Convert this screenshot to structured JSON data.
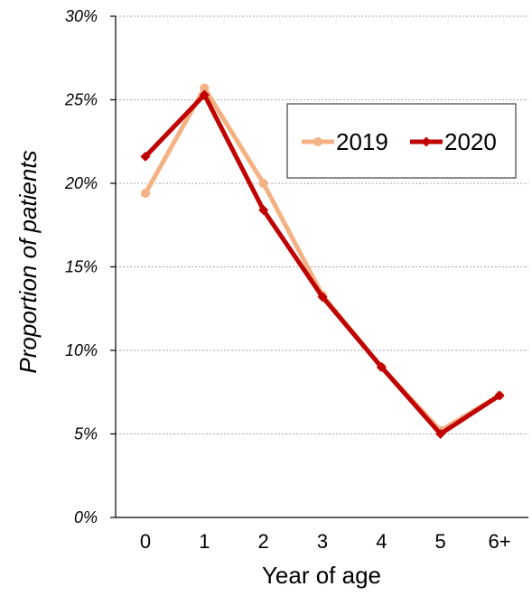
{
  "chart_data": {
    "type": "line",
    "categories": [
      "0",
      "1",
      "2",
      "3",
      "4",
      "5",
      "6+"
    ],
    "series": [
      {
        "name": "2019",
        "color": "#F4B183",
        "marker": "circle",
        "values": [
          19.4,
          25.7,
          20.0,
          13.3,
          9.0,
          5.2,
          7.3
        ]
      },
      {
        "name": "2020",
        "color": "#C00000",
        "marker": "diamond",
        "values": [
          21.6,
          25.3,
          18.4,
          13.2,
          9.0,
          5.0,
          7.3
        ]
      }
    ],
    "xlabel": "Year of age",
    "ylabel": "Proportion of patients",
    "ylim": [
      0,
      30
    ],
    "yticks": [
      "0%",
      "5%",
      "10%",
      "15%",
      "20%",
      "25%",
      "30%"
    ],
    "y_tick_values": [
      0,
      5,
      10,
      15,
      20,
      25,
      30
    ],
    "grid": "horizontal dotted",
    "legend_position": "top-right"
  }
}
